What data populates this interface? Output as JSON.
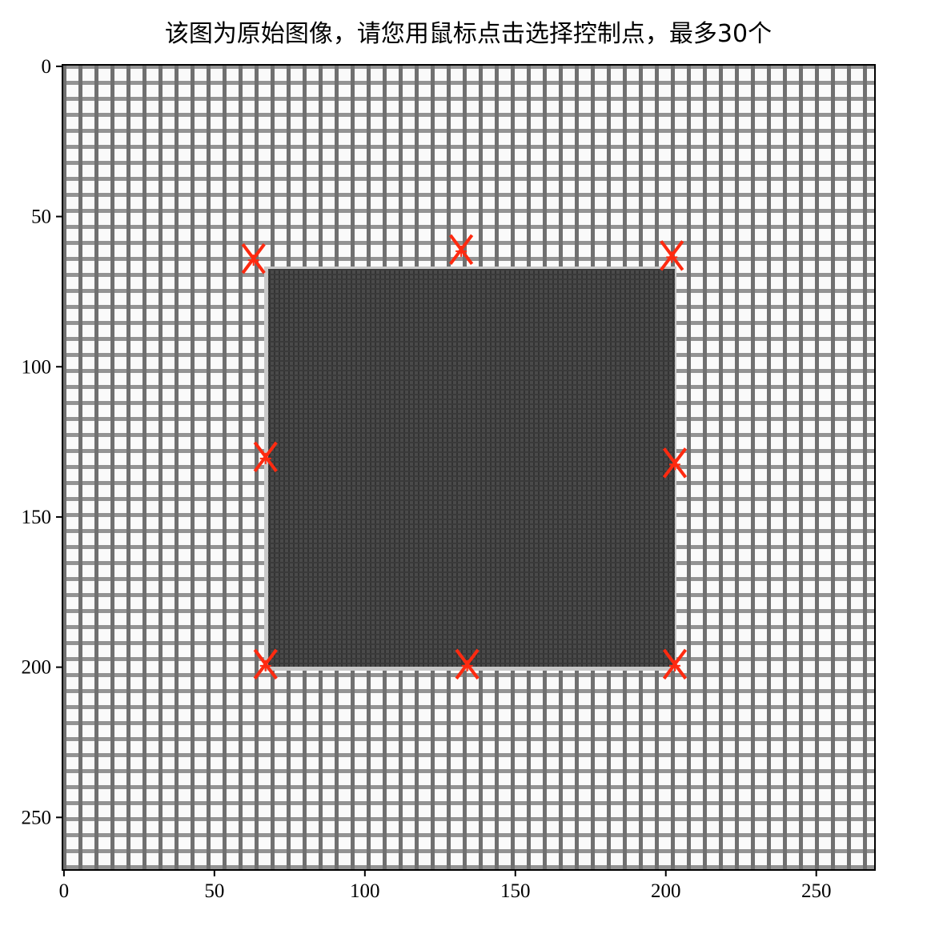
{
  "chart_data": {
    "type": "scatter",
    "title": "该图为原始图像，请您用鼠标点击选择控制点，最多30个",
    "x": [
      63,
      132,
      202,
      67,
      203,
      67,
      134,
      203
    ],
    "y": [
      64,
      61,
      63,
      130,
      132,
      199,
      199,
      199
    ],
    "color": "#ff2a10",
    "xlim": [
      -0.5,
      269.5
    ],
    "ylim": [
      267.5,
      -0.5
    ],
    "xticks": [
      0,
      50,
      100,
      150,
      200,
      250
    ],
    "yticks": [
      0,
      50,
      100,
      150,
      200,
      250
    ]
  }
}
